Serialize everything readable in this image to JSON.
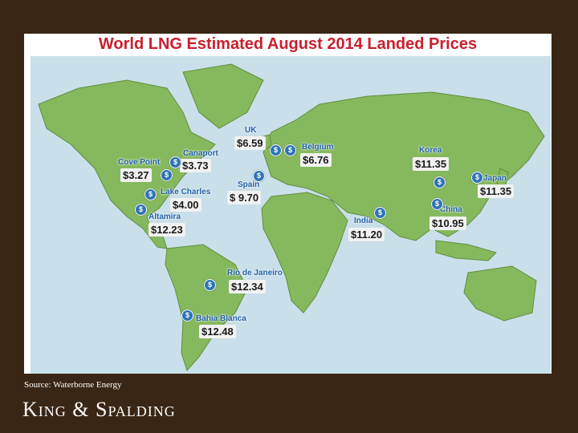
{
  "title": "World LNG Estimated August 2014 Landed Prices",
  "source": "Source: Waterborne Energy",
  "brand": "King & Spalding",
  "pin_symbol": "$",
  "colors": {
    "title": "#c8202f",
    "label": "#1f5fa5",
    "land": "#86b95e",
    "ocean": "#c9dfe9",
    "background": "#3a2614",
    "pin": "#2f75b5"
  },
  "locations": [
    {
      "name": "UK",
      "price": "$6.59"
    },
    {
      "name": "Belgium",
      "price": "$6.76"
    },
    {
      "name": "Cove Point",
      "price": "$3.27"
    },
    {
      "name": "Canaport",
      "price": "$3.73"
    },
    {
      "name": "Spain",
      "price": "$ 9.70"
    },
    {
      "name": "Lake Charles",
      "price": "$4.00"
    },
    {
      "name": "Altamira",
      "price": "$12.23"
    },
    {
      "name": "Korea",
      "price": "$11.35"
    },
    {
      "name": "Japan",
      "price": "$11.35"
    },
    {
      "name": "China",
      "price": "$10.95"
    },
    {
      "name": "India",
      "price": "$11.20"
    },
    {
      "name": "Rio de Janeiro",
      "price": "$12.34"
    },
    {
      "name": "Bahia Blanca",
      "price": "$12.48"
    }
  ]
}
